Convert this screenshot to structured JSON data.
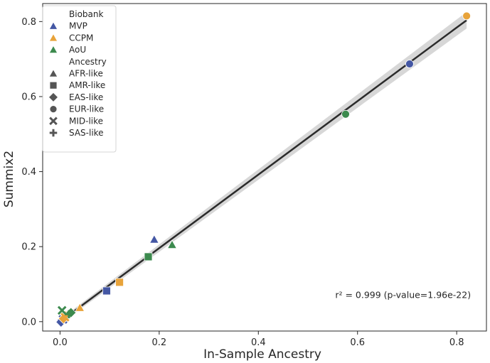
{
  "chart_data": {
    "type": "scatter",
    "xlabel": "In-Sample Ancestry",
    "ylabel": "Summix2",
    "xlim": [
      -0.035,
      0.86
    ],
    "ylim": [
      -0.025,
      0.848
    ],
    "xticks": [
      0.0,
      0.2,
      0.4,
      0.6,
      0.8
    ],
    "yticks": [
      0.0,
      0.2,
      0.4,
      0.6,
      0.8
    ],
    "tick_labels_x": [
      "0.0",
      "0.2",
      "0.4",
      "0.6",
      "0.8"
    ],
    "tick_labels_y": [
      "0.0",
      "0.2",
      "0.4",
      "0.6",
      "0.8"
    ],
    "annotation": "r² = 0.999 (p-value=1.96e-22)",
    "annotation_at": {
      "x": 0.555,
      "y": 0.063
    },
    "fit_line": {
      "intercept": 0.0,
      "slope": 0.98,
      "x_range": [
        0.0,
        0.82
      ]
    },
    "legend": {
      "position": "upper-left",
      "biobank_title": "Biobank",
      "biobank": [
        {
          "label": "MVP",
          "color": "#4457a4"
        },
        {
          "label": "CCPM",
          "color": "#e8a33a"
        },
        {
          "label": "AoU",
          "color": "#3c8a4e"
        }
      ],
      "ancestry_title": "Ancestry",
      "ancestry": [
        {
          "label": "AFR-like",
          "shape": "triangle"
        },
        {
          "label": "AMR-like",
          "shape": "square"
        },
        {
          "label": "EAS-like",
          "shape": "diamond"
        },
        {
          "label": "EUR-like",
          "shape": "circle"
        },
        {
          "label": "MID-like",
          "shape": "x"
        },
        {
          "label": "SAS-like",
          "shape": "plus"
        }
      ]
    },
    "series": [
      {
        "name": "MVP",
        "color": "#4457a4",
        "points": [
          {
            "x": 0.705,
            "y": 0.687,
            "shape": "circle"
          },
          {
            "x": 0.19,
            "y": 0.219,
            "shape": "triangle"
          },
          {
            "x": 0.094,
            "y": 0.082,
            "shape": "square"
          },
          {
            "x": 0.002,
            "y": -0.001,
            "shape": "diamond"
          },
          {
            "x": 0.006,
            "y": 0.006,
            "shape": "x"
          },
          {
            "x": 0.004,
            "y": 0.003,
            "shape": "plus"
          }
        ]
      },
      {
        "name": "CCPM",
        "color": "#e8a33a",
        "points": [
          {
            "x": 0.82,
            "y": 0.815,
            "shape": "circle"
          },
          {
            "x": 0.04,
            "y": 0.037,
            "shape": "triangle"
          },
          {
            "x": 0.12,
            "y": 0.105,
            "shape": "square"
          },
          {
            "x": 0.007,
            "y": 0.008,
            "shape": "diamond"
          },
          {
            "x": 0.01,
            "y": 0.012,
            "shape": "x"
          },
          {
            "x": 0.012,
            "y": 0.016,
            "shape": "plus"
          }
        ]
      },
      {
        "name": "AoU",
        "color": "#3c8a4e",
        "points": [
          {
            "x": 0.576,
            "y": 0.553,
            "shape": "circle"
          },
          {
            "x": 0.226,
            "y": 0.205,
            "shape": "triangle"
          },
          {
            "x": 0.178,
            "y": 0.173,
            "shape": "square"
          },
          {
            "x": 0.022,
            "y": 0.024,
            "shape": "diamond"
          },
          {
            "x": 0.004,
            "y": 0.03,
            "shape": "x"
          },
          {
            "x": 0.018,
            "y": 0.02,
            "shape": "plus"
          }
        ]
      }
    ]
  }
}
